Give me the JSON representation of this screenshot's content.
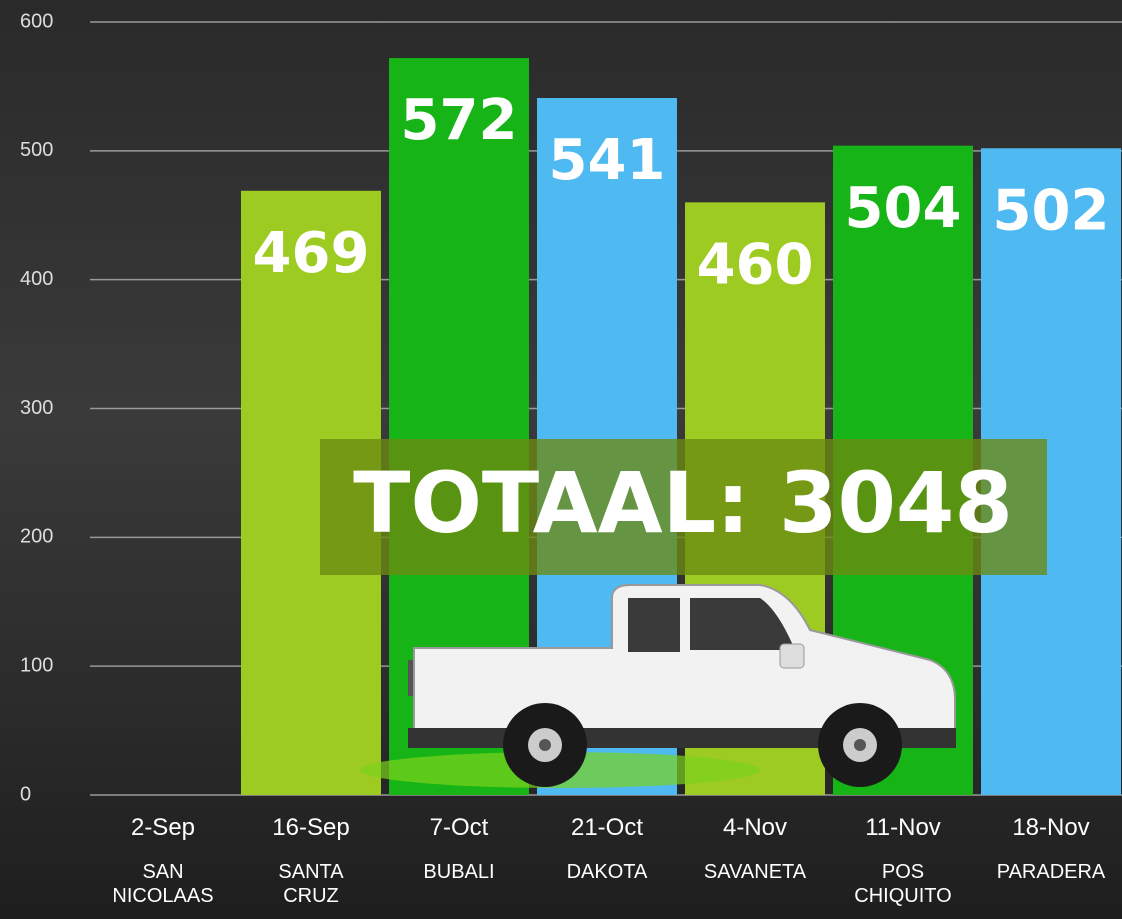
{
  "chart_data": {
    "type": "bar",
    "categories": [
      "2-Sep",
      "16-Sep",
      "7-Oct",
      "21-Oct",
      "4-Nov",
      "11-Nov",
      "18-Nov"
    ],
    "locations": [
      "SAN NICOLAAS",
      "SANTA CRUZ",
      "BUBALI",
      "DAKOTA",
      "SAVANETA",
      "POS CHIQUITO",
      "PARADERA"
    ],
    "values": [
      null,
      469,
      572,
      541,
      460,
      504,
      502
    ],
    "colors": [
      null,
      "#9dcb22",
      "#16b416",
      "#4fb9f2",
      "#9dcb22",
      "#16b416",
      "#4fb9f2"
    ],
    "annotation": "TOTAAL: 3048",
    "ylim": [
      0,
      600
    ],
    "yticks": [
      0,
      100,
      200,
      300,
      400,
      500,
      600
    ],
    "grid": true
  }
}
